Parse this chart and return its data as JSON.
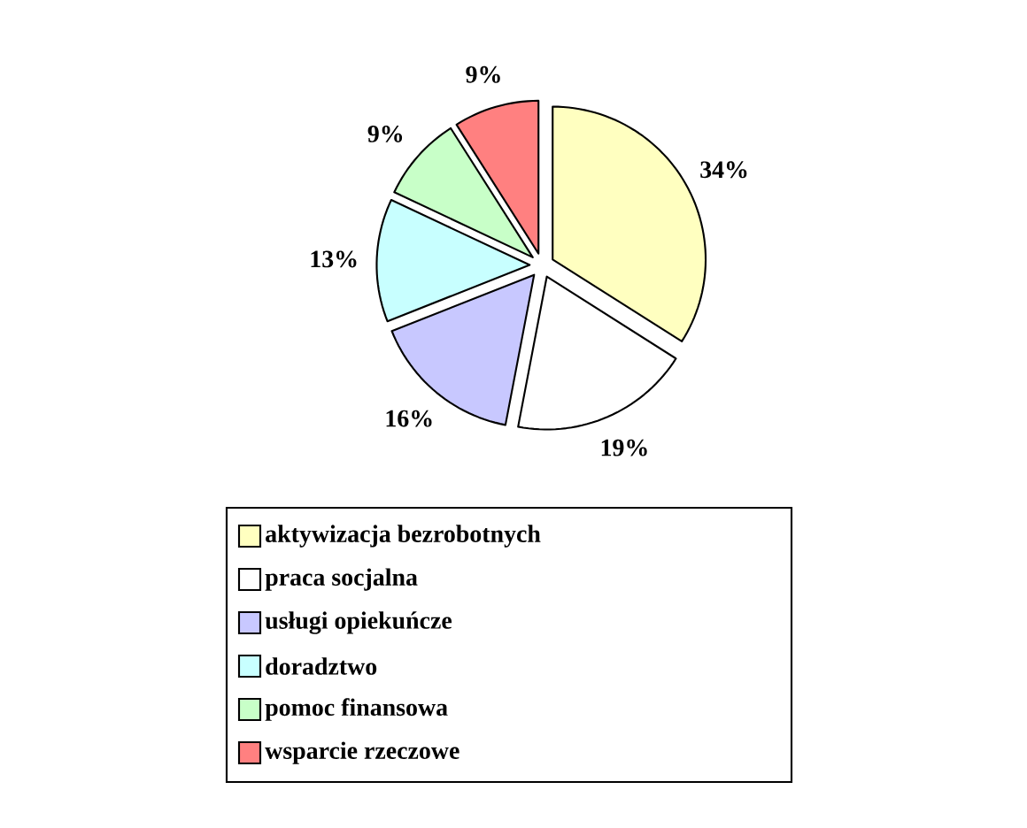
{
  "chart_data": {
    "type": "pie",
    "categories": [
      "aktywizacja bezrobotnych",
      "praca socjalna",
      "usługi opiekuńcze",
      "doradztwo",
      "pomoc finansowa",
      "wsparcie rzeczowe"
    ],
    "values": [
      34,
      19,
      16,
      13,
      9,
      9
    ],
    "value_labels": [
      "34%",
      "19%",
      "16%",
      "13%",
      "9%",
      "9%"
    ],
    "colors": [
      "#ffffc0",
      "#ffffff",
      "#c8c8ff",
      "#c8ffff",
      "#c8ffc8",
      "#ff8080"
    ],
    "legend": "bottom"
  }
}
